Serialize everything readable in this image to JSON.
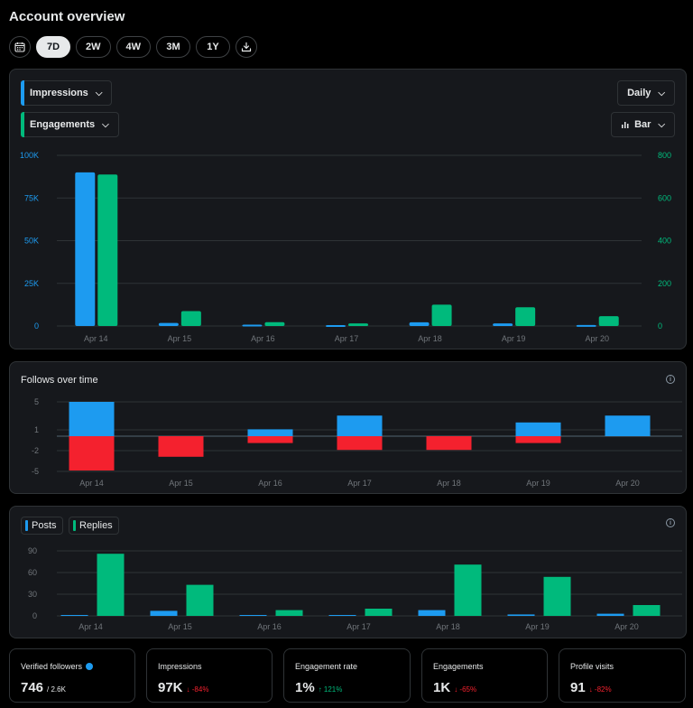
{
  "page": {
    "title": "Account overview"
  },
  "range": {
    "options": [
      "7D",
      "2W",
      "4W",
      "3M",
      "1Y"
    ],
    "selected": "7D"
  },
  "colors": {
    "blue": "#1d9bf0",
    "green": "#00ba7c",
    "red": "#f4212e",
    "grid": "#2f3336",
    "axis_label": "#71767b"
  },
  "impressions_panel": {
    "metric1": "Impressions",
    "metric2": "Engagements",
    "interval": "Daily",
    "chart_kind": "Bar"
  },
  "follows_panel": {
    "title": "Follows over time"
  },
  "posts_panel": {
    "legend1": "Posts",
    "legend2": "Replies"
  },
  "chart_data": [
    {
      "type": "bar",
      "categories": [
        "Apr 14",
        "Apr 15",
        "Apr 16",
        "Apr 17",
        "Apr 18",
        "Apr 19",
        "Apr 20"
      ],
      "series": [
        {
          "name": "Impressions",
          "axis": "left",
          "values": [
            90000,
            1800,
            800,
            500,
            2200,
            1500,
            600
          ]
        },
        {
          "name": "Engagements",
          "axis": "right",
          "values": [
            710,
            70,
            18,
            12,
            100,
            88,
            46
          ]
        }
      ],
      "y_left": {
        "ticks": [
          "0",
          "25K",
          "50K",
          "75K",
          "100K"
        ],
        "lim": [
          0,
          100000
        ]
      },
      "y_right": {
        "ticks": [
          "0",
          "200",
          "400",
          "600",
          "800"
        ],
        "lim": [
          0,
          800
        ]
      },
      "grid": true
    },
    {
      "type": "bar",
      "categories": [
        "Apr 14",
        "Apr 15",
        "Apr 16",
        "Apr 17",
        "Apr 18",
        "Apr 19",
        "Apr 20"
      ],
      "series": [
        {
          "values": [
            5,
            0,
            1,
            3,
            0,
            2,
            3
          ]
        },
        {
          "values": [
            -5,
            -3,
            -1,
            -2,
            -2,
            -1,
            0
          ]
        }
      ],
      "y_ticks": [
        "5",
        "1",
        "-2",
        "-5"
      ],
      "ylim": [
        -5,
        5
      ],
      "grid": true
    },
    {
      "type": "bar",
      "categories": [
        "Apr 14",
        "Apr 15",
        "Apr 16",
        "Apr 17",
        "Apr 18",
        "Apr 19",
        "Apr 20"
      ],
      "series": [
        {
          "name": "Posts",
          "values": [
            1,
            7,
            0,
            1,
            8,
            2,
            3
          ]
        },
        {
          "name": "Replies",
          "values": [
            86,
            43,
            8,
            10,
            71,
            54,
            15
          ]
        }
      ],
      "y_ticks": [
        "0",
        "30",
        "60",
        "90"
      ],
      "ylim": [
        0,
        90
      ],
      "grid": true
    }
  ],
  "stats": [
    {
      "label": "Verified followers",
      "value": "746",
      "sub": "/ 2.6K",
      "verified": true
    },
    {
      "label": "Impressions",
      "value": "97K",
      "delta": "↓ -84%",
      "direction": "down"
    },
    {
      "label": "Engagement rate",
      "value": "1%",
      "delta": "↑ 121%",
      "direction": "up"
    },
    {
      "label": "Engagements",
      "value": "1K",
      "delta": "↓ -65%",
      "direction": "down"
    },
    {
      "label": "Profile visits",
      "value": "91",
      "delta": "↓ -82%",
      "direction": "down"
    }
  ]
}
